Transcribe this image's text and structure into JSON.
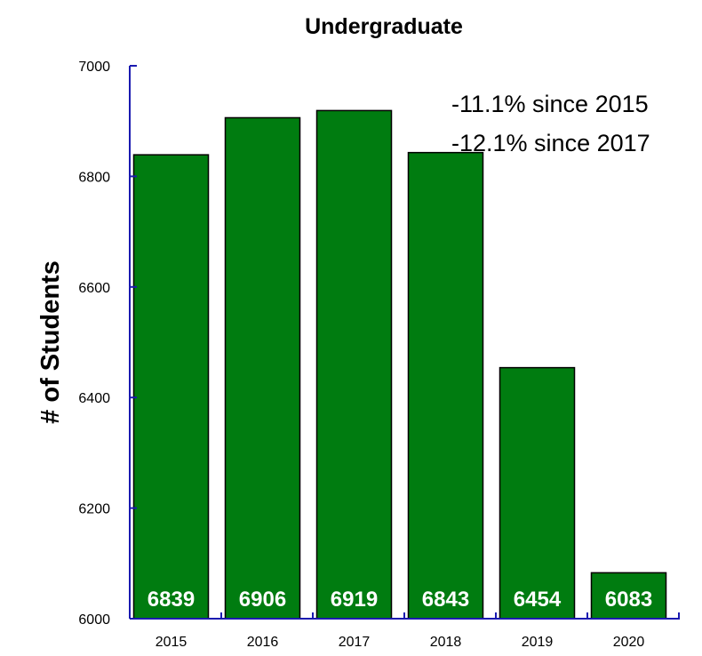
{
  "chart_data": {
    "type": "bar",
    "title": "Undergraduate",
    "xlabel": "",
    "ylabel": "# of Students",
    "categories": [
      "2015",
      "2016",
      "2017",
      "2018",
      "2019",
      "2020"
    ],
    "values": [
      6839,
      6906,
      6919,
      6843,
      6454,
      6083
    ],
    "data_labels": [
      "6839",
      "6906",
      "6919",
      "6843",
      "6454",
      "6083"
    ],
    "ylim": [
      6000,
      7000
    ],
    "yticks": [
      6000,
      6200,
      6400,
      6600,
      6800,
      7000
    ],
    "ytick_labels": [
      "6000",
      "6200",
      "6400",
      "6600",
      "6800",
      "7000"
    ],
    "annotations": [
      "-11.1% since 2015",
      "-12.1% since 2017"
    ],
    "grid": false,
    "legend": "none",
    "colors": {
      "bar": "#007c10",
      "bar_edge": "#000000",
      "axis": "#1a1ab0",
      "data_label": "#ffffff"
    }
  }
}
